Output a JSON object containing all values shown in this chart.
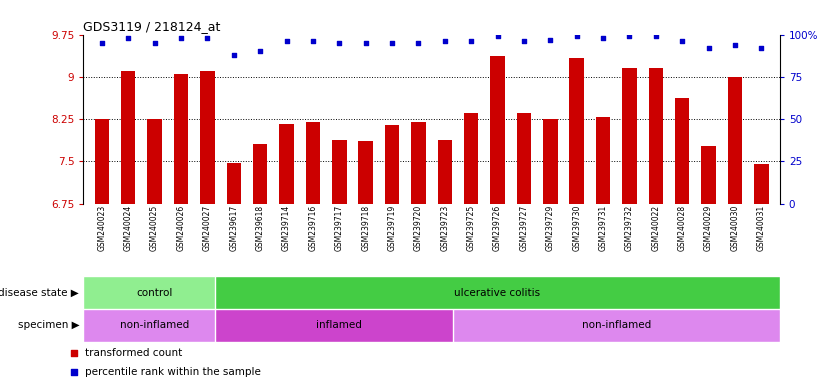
{
  "title": "GDS3119 / 218124_at",
  "samples": [
    "GSM240023",
    "GSM240024",
    "GSM240025",
    "GSM240026",
    "GSM240027",
    "GSM239617",
    "GSM239618",
    "GSM239714",
    "GSM239716",
    "GSM239717",
    "GSM239718",
    "GSM239719",
    "GSM239720",
    "GSM239723",
    "GSM239725",
    "GSM239726",
    "GSM239727",
    "GSM239729",
    "GSM239730",
    "GSM239731",
    "GSM239732",
    "GSM240022",
    "GSM240028",
    "GSM240029",
    "GSM240030",
    "GSM240031"
  ],
  "bar_values": [
    8.25,
    9.1,
    8.25,
    9.05,
    9.1,
    7.47,
    7.8,
    8.17,
    8.2,
    7.87,
    7.86,
    8.15,
    8.19,
    7.87,
    8.36,
    9.37,
    8.36,
    8.25,
    9.33,
    8.28,
    9.16,
    9.15,
    8.62,
    7.78,
    9.0,
    7.45
  ],
  "percentile_values": [
    95,
    98,
    95,
    98,
    98,
    88,
    90,
    96,
    96,
    95,
    95,
    95,
    95,
    96,
    96,
    99,
    96,
    97,
    99,
    98,
    99,
    99,
    96,
    92,
    94,
    92
  ],
  "bar_color": "#cc0000",
  "percentile_color": "#0000cc",
  "ymin": 6.75,
  "ymax": 9.75,
  "y_ticks": [
    6.75,
    7.5,
    8.25,
    9.0,
    9.75
  ],
  "y_tick_labels": [
    "6.75",
    "7.5",
    "8.25",
    "9",
    "9.75"
  ],
  "y2_ticks": [
    0,
    25,
    50,
    75,
    100
  ],
  "y2_tick_labels": [
    "0",
    "25",
    "50",
    "75",
    "100%"
  ],
  "grid_lines": [
    7.5,
    8.25,
    9.0
  ],
  "disease_state_groups": [
    {
      "label": "control",
      "start": 0,
      "end": 5,
      "color": "#90ee90"
    },
    {
      "label": "ulcerative colitis",
      "start": 5,
      "end": 26,
      "color": "#44cc44"
    }
  ],
  "specimen_groups": [
    {
      "label": "non-inflamed",
      "start": 0,
      "end": 5,
      "color": "#dd88ee"
    },
    {
      "label": "inflamed",
      "start": 5,
      "end": 14,
      "color": "#cc44cc"
    },
    {
      "label": "non-inflamed",
      "start": 14,
      "end": 26,
      "color": "#cc44cc"
    }
  ],
  "disease_state_label": "disease state",
  "specimen_label": "specimen",
  "legend_items": [
    {
      "label": "transformed count",
      "color": "#cc0000"
    },
    {
      "label": "percentile rank within the sample",
      "color": "#0000cc"
    }
  ],
  "bg_color": "#ffffff",
  "plot_bg_color": "#ffffff",
  "tick_area_color": "#d0d0d0"
}
